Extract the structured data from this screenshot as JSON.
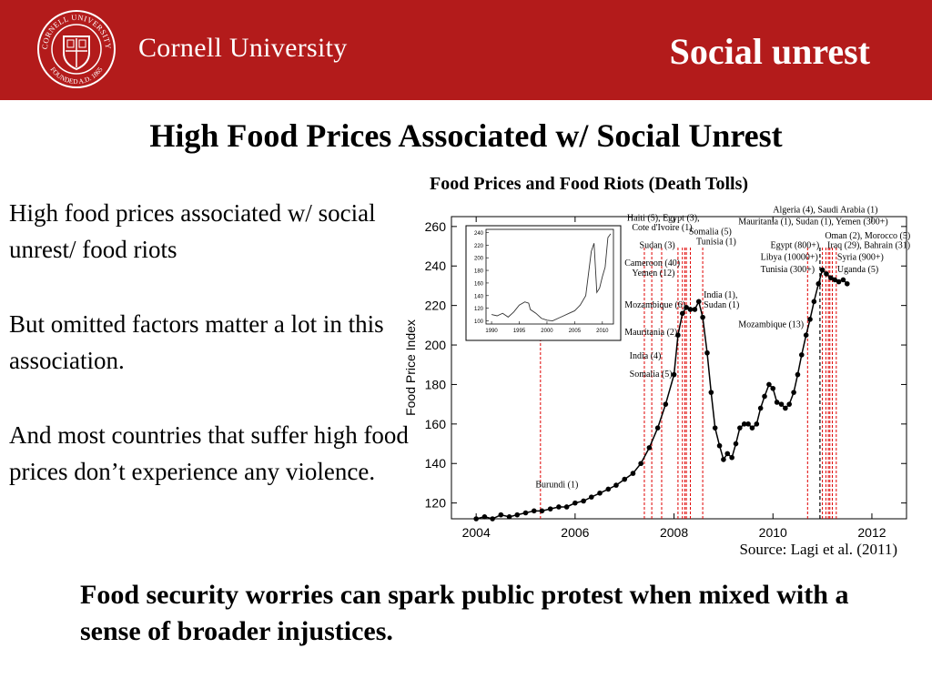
{
  "header": {
    "university": "Cornell University",
    "section_title": "Social unrest",
    "seal_text": [
      "CORNELL UNIVERSITY",
      "FOUNDED A.D. 1865"
    ],
    "brand_color": "#b31b1b"
  },
  "slide_title": "High Food Prices Associated w/ Social Unrest",
  "bullets": [
    "High food prices associated w/ social unrest/ food riots",
    "But omitted factors matter a lot in this association.",
    "And most countries that suffer high food prices don’t experience any violence."
  ],
  "chart_title": "Food Prices and Food Riots (Death Tolls)",
  "source": "Source: Lagi et al. (2011)",
  "takeaway": "Food security worries can spark public protest when mixed with a sense of broader injustices.",
  "chart_data": {
    "type": "line",
    "ylabel": "Food Price Index",
    "xlim": [
      2003.5,
      2012.7
    ],
    "ylim": [
      112,
      265
    ],
    "xticks": [
      2004,
      2006,
      2008,
      2010,
      2012
    ],
    "yticks": [
      120,
      140,
      160,
      180,
      200,
      220,
      240,
      260
    ],
    "series": [
      {
        "values": [
          [
            2004.0,
            112
          ],
          [
            2004.17,
            113
          ],
          [
            2004.33,
            112
          ],
          [
            2004.5,
            114
          ],
          [
            2004.67,
            113
          ],
          [
            2004.83,
            114
          ],
          [
            2005.0,
            115
          ],
          [
            2005.17,
            116
          ],
          [
            2005.33,
            116
          ],
          [
            2005.5,
            117
          ],
          [
            2005.67,
            118
          ],
          [
            2005.83,
            118
          ],
          [
            2006.0,
            120
          ],
          [
            2006.17,
            121
          ],
          [
            2006.33,
            123
          ],
          [
            2006.5,
            125
          ],
          [
            2006.67,
            127
          ],
          [
            2006.83,
            129
          ],
          [
            2007.0,
            132
          ],
          [
            2007.17,
            135
          ],
          [
            2007.33,
            140
          ],
          [
            2007.5,
            148
          ],
          [
            2007.67,
            158
          ],
          [
            2007.83,
            170
          ],
          [
            2008.0,
            185
          ],
          [
            2008.08,
            205
          ],
          [
            2008.17,
            216
          ],
          [
            2008.25,
            219
          ],
          [
            2008.33,
            218
          ],
          [
            2008.42,
            218
          ],
          [
            2008.5,
            222
          ],
          [
            2008.58,
            214
          ],
          [
            2008.67,
            196
          ],
          [
            2008.75,
            176
          ],
          [
            2008.83,
            158
          ],
          [
            2008.92,
            149
          ],
          [
            2009.0,
            142
          ],
          [
            2009.08,
            145
          ],
          [
            2009.17,
            143
          ],
          [
            2009.25,
            150
          ],
          [
            2009.33,
            158
          ],
          [
            2009.42,
            160
          ],
          [
            2009.5,
            160
          ],
          [
            2009.58,
            158
          ],
          [
            2009.67,
            160
          ],
          [
            2009.75,
            168
          ],
          [
            2009.83,
            174
          ],
          [
            2009.92,
            180
          ],
          [
            2010.0,
            178
          ],
          [
            2010.08,
            171
          ],
          [
            2010.17,
            170
          ],
          [
            2010.25,
            168
          ],
          [
            2010.33,
            170
          ],
          [
            2010.42,
            176
          ],
          [
            2010.5,
            185
          ],
          [
            2010.58,
            195
          ],
          [
            2010.67,
            205
          ],
          [
            2010.75,
            213
          ],
          [
            2010.83,
            222
          ],
          [
            2010.92,
            231
          ],
          [
            2011.0,
            238
          ],
          [
            2011.08,
            236
          ],
          [
            2011.17,
            234
          ],
          [
            2011.25,
            233
          ],
          [
            2011.33,
            232
          ],
          [
            2011.42,
            233
          ],
          [
            2011.5,
            231
          ]
        ]
      }
    ],
    "riot_lines": [
      2005.3,
      2007.4,
      2007.55,
      2007.75,
      2008.08,
      2008.17,
      2008.22,
      2008.25,
      2008.33,
      2008.58,
      2010.7,
      2011.0,
      2011.07,
      2011.12,
      2011.15,
      2011.2,
      2011.28
    ],
    "riot_dashed_black": [
      2010.95
    ],
    "annotations": [
      {
        "text": "Burundi (1)",
        "x": 2005.2,
        "y": 128
      },
      {
        "text": "Somalia (5)",
        "x": 2007.1,
        "y": 184
      },
      {
        "text": "India (4)",
        "x": 2007.1,
        "y": 193
      },
      {
        "text": "Mauritania (2)",
        "x": 2007.0,
        "y": 205
      },
      {
        "text": "Mozambique (6)",
        "x": 2007.0,
        "y": 219
      },
      {
        "text": "Yemen (12)",
        "x": 2007.15,
        "y": 235
      },
      {
        "text": "Cameroon (40)",
        "x": 2007.0,
        "y": 240
      },
      {
        "text": "Sudan (3)",
        "x": 2007.3,
        "y": 249
      },
      {
        "text": "Cote d'Ivoire (1)",
        "x": 2007.15,
        "y": 258
      },
      {
        "text": "Haiti (5), Egypt (3),",
        "x": 2007.05,
        "y": 263
      },
      {
        "text": "Somalia (5)",
        "x": 2008.3,
        "y": 256
      },
      {
        "text": "Tunisia (1)",
        "x": 2008.45,
        "y": 251
      },
      {
        "text": "India (1),",
        "x": 2008.6,
        "y": 224
      },
      {
        "text": "Sudan (1)",
        "x": 2008.6,
        "y": 219
      },
      {
        "text": "Mozambique (13)",
        "x": 2009.3,
        "y": 209
      },
      {
        "text": "Algeria (4), Saudi Arabia (1)",
        "x": 2010.0,
        "y": 267
      },
      {
        "text": "Mauritania (1), Sudan (1), Yemen (300+)",
        "x": 2009.3,
        "y": 261
      },
      {
        "text": "Oman (2), Morocco (5)",
        "x": 2011.05,
        "y": 254
      },
      {
        "text": "Egypt (800+)",
        "x": 2009.95,
        "y": 249
      },
      {
        "text": "Iraq (29), Bahrain (31)",
        "x": 2011.1,
        "y": 249
      },
      {
        "text": "Libya (10000+)",
        "x": 2009.75,
        "y": 243
      },
      {
        "text": "Syria (900+)",
        "x": 2011.3,
        "y": 243
      },
      {
        "text": "Tunisia (300+)",
        "x": 2009.75,
        "y": 237
      },
      {
        "text": "Uganda (5)",
        "x": 2011.3,
        "y": 237
      }
    ],
    "inset": {
      "xticks": [
        1990,
        1995,
        2000,
        2005,
        2010
      ],
      "yticks": [
        100,
        120,
        140,
        160,
        180,
        200,
        220,
        240
      ],
      "xlim": [
        1989,
        2012
      ],
      "ylim": [
        95,
        245
      ],
      "values": [
        [
          1990,
          110
        ],
        [
          1991,
          108
        ],
        [
          1992,
          112
        ],
        [
          1993,
          106
        ],
        [
          1994,
          114
        ],
        [
          1995,
          125
        ],
        [
          1996,
          130
        ],
        [
          1996.7,
          128
        ],
        [
          1997,
          118
        ],
        [
          1998,
          112
        ],
        [
          1999,
          104
        ],
        [
          2000,
          101
        ],
        [
          2001,
          100
        ],
        [
          2002,
          104
        ],
        [
          2003,
          108
        ],
        [
          2004,
          112
        ],
        [
          2005,
          116
        ],
        [
          2006,
          125
        ],
        [
          2007,
          140
        ],
        [
          2008,
          210
        ],
        [
          2008.5,
          223
        ],
        [
          2009,
          145
        ],
        [
          2009.5,
          152
        ],
        [
          2010,
          170
        ],
        [
          2010.5,
          185
        ],
        [
          2011,
          232
        ],
        [
          2011.5,
          238
        ]
      ]
    },
    "colors": {
      "line": "#000000",
      "riot": "#e00000"
    }
  }
}
